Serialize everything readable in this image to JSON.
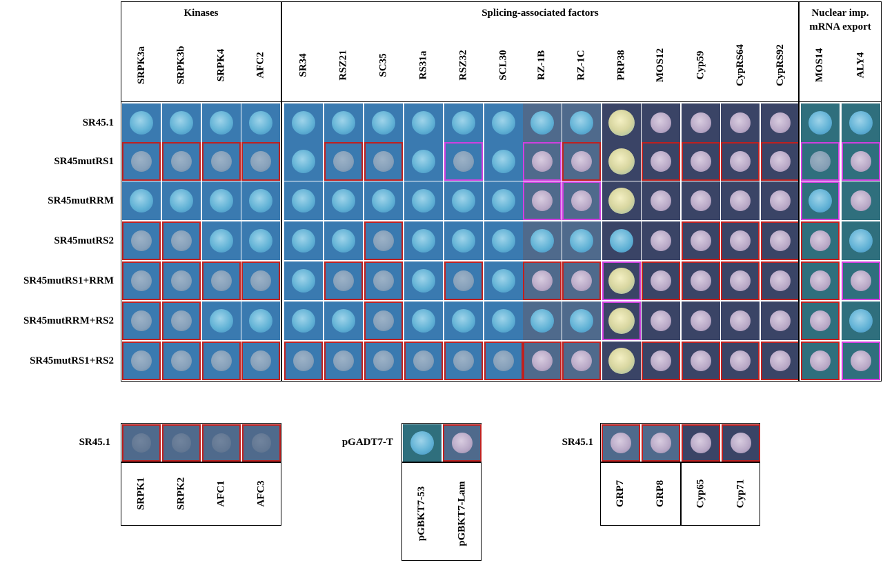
{
  "groups": {
    "kinases": "Kinases",
    "splicing": "Splicing-associated factors",
    "nuclear_line1": "Nuclear imp.",
    "nuclear_line2": "mRNA export"
  },
  "columns": [
    "SRPK3a",
    "SRPK3b",
    "SRPK4",
    "AFC2",
    "SR34",
    "RSZ21",
    "SC35",
    "RS31a",
    "RSZ32",
    "SCL30",
    "RZ-1B",
    "RZ-1C",
    "PRP38",
    "MOS12",
    "Cyp59",
    "CypRS64",
    "CypRS92",
    "MOS14",
    "ALY4"
  ],
  "rows": [
    "SR45.1",
    "SR45mutRS1",
    "SR45mutRRM",
    "SR45mutRS2",
    "SR45mutRS1+RRM",
    "SR45mutRRM+RS2",
    "SR45mutRS1+RS2"
  ],
  "bottom": {
    "left_label": "SR45.1",
    "left_columns": [
      "SRPK1",
      "SRPK2",
      "AFC1",
      "AFC3"
    ],
    "mid_label": "pGADT7-T",
    "mid_columns": [
      "pGBKT7-53",
      "pGBKT7-Lam"
    ],
    "right_label": "SR45.1",
    "right_columns": [
      "GRP7",
      "GRP8",
      "Cyp65",
      "Cyp71"
    ]
  },
  "colors": {
    "positive_border": "#c0201f",
    "weak_border": "#d040e0",
    "plate_blue": "#3a7ab0"
  }
}
